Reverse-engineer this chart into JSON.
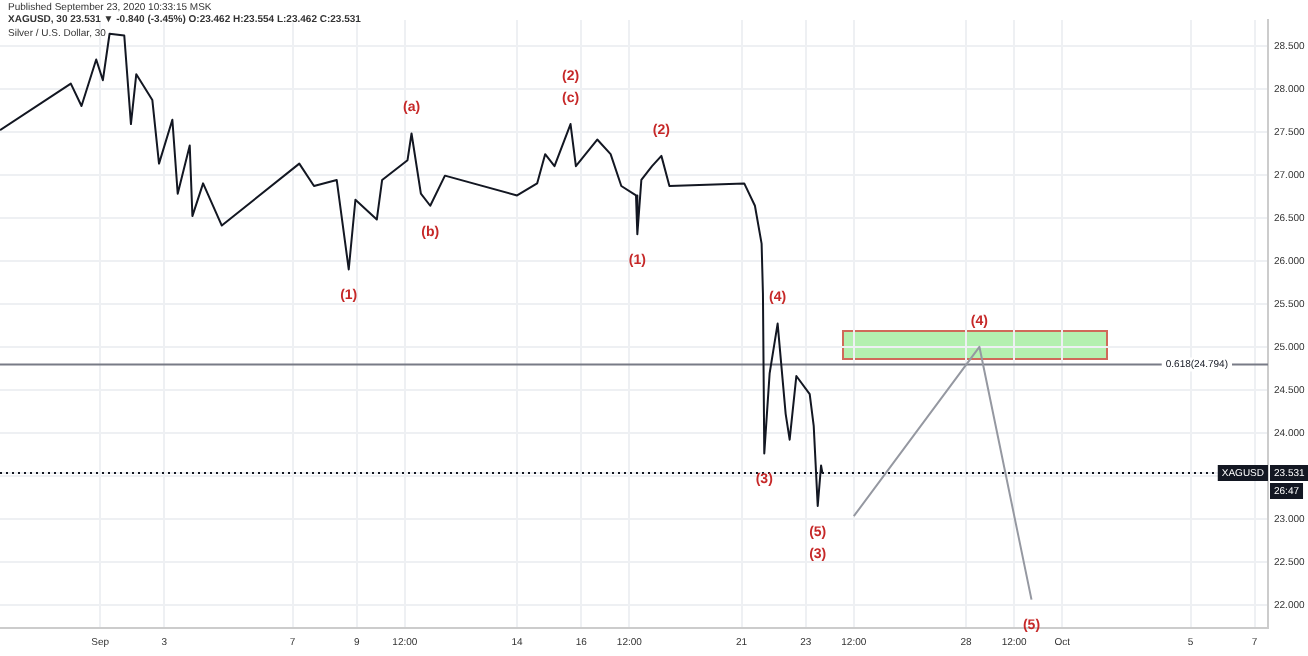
{
  "chart_data": {
    "type": "line",
    "title": "Silver / U.S. Dollar, 30",
    "subtitle": "XAGUSD, 30 23.531 ▼ -0.840 (-3.45%) O:23.462 H:23.554 L:23.462 C:23.531",
    "annotations": [
      "Published September 23, 2020 10:33:15 MSK",
      "26:47",
      {
        "text": "(1)",
        "x": "2020-09-08T18:00",
        "y": 25.9
      },
      {
        "text": "(a)",
        "x": "2020-09-10T17:00",
        "y": 27.48
      },
      {
        "text": "(b)",
        "x": "2020-09-11T07:00",
        "y": 26.64
      },
      {
        "text": "(c)",
        "x": "2020-09-15T16:00",
        "y": 27.59
      },
      {
        "text": "(2)",
        "x": "2020-09-15T16:00",
        "y": 27.59
      },
      {
        "text": "(1)",
        "x": "2020-09-17T18:00",
        "y": 26.31
      },
      {
        "text": "(2)",
        "x": "2020-09-18T12:00",
        "y": 27.22
      },
      {
        "text": "(3)",
        "x": "2020-09-21T17:00",
        "y": 23.76
      },
      {
        "text": "(4)",
        "x": "2020-09-22T03:00",
        "y": 25.27
      },
      {
        "text": "(5)",
        "x": "2020-09-23T09:00",
        "y": 23.15
      },
      {
        "text": "(3)",
        "x": "2020-09-23T09:00",
        "y": 23.15
      },
      {
        "text": "(4)",
        "x": "2020-09-28T10:00",
        "y": 25.0
      },
      {
        "text": "(5)",
        "x": "2020-09-30T01:00",
        "y": 22.06
      }
    ],
    "xlim": [
      "2020-08-28T21:00",
      "2020-10-07T10:00"
    ],
    "ylim": [
      21.73,
      28.8
    ],
    "xticks": [
      {
        "value": "2020-09-01",
        "label": "Sep"
      },
      {
        "value": "2020-09-03",
        "label": "3"
      },
      {
        "value": "2020-09-07",
        "label": "7"
      },
      {
        "value": "2020-09-09",
        "label": "9"
      },
      {
        "value": "2020-09-10T12:00",
        "label": "12:00"
      },
      {
        "value": "2020-09-14",
        "label": "14"
      },
      {
        "value": "2020-09-16",
        "label": "16"
      },
      {
        "value": "2020-09-17T12:00",
        "label": "12:00"
      },
      {
        "value": "2020-09-21",
        "label": "21"
      },
      {
        "value": "2020-09-23",
        "label": "23"
      },
      {
        "value": "2020-09-24T12:00",
        "label": "12:00"
      },
      {
        "value": "2020-09-28",
        "label": "28"
      },
      {
        "value": "2020-09-29T12:00",
        "label": "12:00"
      },
      {
        "value": "2020-10-01",
        "label": "Oct"
      },
      {
        "value": "2020-10-05",
        "label": "5"
      },
      {
        "value": "2020-10-07",
        "label": "7"
      }
    ],
    "yticks": [
      {
        "value": 22,
        "label": "22.000"
      },
      {
        "value": 22.5,
        "label": "22.500"
      },
      {
        "value": 23,
        "label": "23.000"
      },
      {
        "value": 23.5,
        "label": null
      },
      {
        "value": 23.531,
        "label": "23.531"
      },
      {
        "value": 24,
        "label": "24.000"
      },
      {
        "value": 24.5,
        "label": "24.500"
      },
      {
        "value": 25,
        "label": "25.000"
      },
      {
        "value": 25.5,
        "label": "25.500"
      },
      {
        "value": 26,
        "label": "26.000"
      },
      {
        "value": 26.5,
        "label": "26.500"
      },
      {
        "value": 27,
        "label": "27.000"
      },
      {
        "value": 27.5,
        "label": "27.500"
      },
      {
        "value": 28,
        "label": "28.000"
      },
      {
        "value": 28.5,
        "label": "28.500"
      }
    ],
    "grid": true,
    "legend": false,
    "ref_lines": [
      {
        "axis": "y",
        "value": 24.794,
        "label": "0.618(24.794)",
        "color": "#787b86"
      },
      {
        "axis": "y",
        "value": 23.531,
        "label": "XAGUSD",
        "color": "#131722",
        "line_style": "dotted"
      }
    ],
    "series": [
      {
        "type": "line",
        "color": "#131722",
        "x": [
          "2020-08-28T21:00",
          "2020-08-31T02:00",
          "2020-08-31T10:00",
          "2020-08-31T21:00",
          "2020-09-01T02:00",
          "2020-09-01T07:00",
          "2020-09-01T18:00",
          "2020-09-01T23:00",
          "2020-09-02T03:00",
          "2020-09-02T15:00",
          "2020-09-02T20:00",
          "2020-09-03T06:00",
          "2020-09-03T10:00",
          "2020-09-03T19:00",
          "2020-09-03T21:00",
          "2020-09-04T05:00",
          "2020-09-04T19:00",
          "2020-09-07T05:00",
          "2020-09-07T16:00",
          "2020-09-08T09:00",
          "2020-09-08T18:00",
          "2020-09-08T23:00",
          "2020-09-09T15:00",
          "2020-09-09T19:00",
          "2020-09-10T14:00",
          "2020-09-10T17:00",
          "2020-09-11T00:00",
          "2020-09-11T07:00",
          "2020-09-11T18:00",
          "2020-09-14T00:00",
          "2020-09-14T15:00",
          "2020-09-14T21:00",
          "2020-09-15T04:00",
          "2020-09-15T16:00",
          "2020-09-15T20:00",
          "2020-09-16T12:00",
          "2020-09-16T22:00",
          "2020-09-17T06:00",
          "2020-09-17T17:00",
          "2020-09-17T18:00",
          "2020-09-17T21:00",
          "2020-09-18T05:00",
          "2020-09-18T12:00",
          "2020-09-18T18:00",
          "2020-09-21T02:00",
          "2020-09-21T10:00",
          "2020-09-21T15:00",
          "2020-09-21T16:00",
          "2020-09-21T17:00",
          "2020-09-21T21:00",
          "2020-09-22T03:00",
          "2020-09-22T09:00",
          "2020-09-22T12:00",
          "2020-09-22T17:00",
          "2020-09-23T03:00",
          "2020-09-23T06:00",
          "2020-09-23T09:00",
          "2020-09-23T11:30",
          "2020-09-23T12:30"
        ],
        "values": [
          27.52,
          28.06,
          27.8,
          28.34,
          28.1,
          28.64,
          28.62,
          27.59,
          28.17,
          27.87,
          27.13,
          27.64,
          26.78,
          27.34,
          26.52,
          26.9,
          26.41,
          27.13,
          26.87,
          26.94,
          25.9,
          26.71,
          26.48,
          26.94,
          27.17,
          27.48,
          26.78,
          26.64,
          26.99,
          26.76,
          26.9,
          27.24,
          27.1,
          27.59,
          27.1,
          27.41,
          27.24,
          26.87,
          26.76,
          26.31,
          26.94,
          27.1,
          27.22,
          26.87,
          26.9,
          26.64,
          26.2,
          25.62,
          23.76,
          24.69,
          25.27,
          24.22,
          23.92,
          24.66,
          24.45,
          24.08,
          23.15,
          23.62,
          23.53
        ]
      },
      {
        "type": "line",
        "color": "#9598a1",
        "x": [
          "2020-09-24T12:00",
          "2020-09-28T10:00",
          "2020-09-30T01:00"
        ],
        "values": [
          23.03,
          25.0,
          22.06
        ]
      }
    ]
  }
}
